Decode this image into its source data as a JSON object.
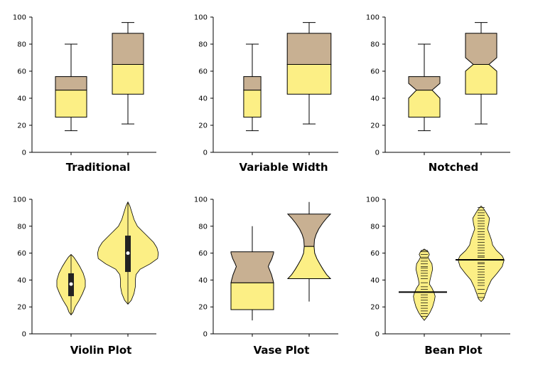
{
  "colors": {
    "lower": "#fcef85",
    "upper": "#c8b092",
    "stroke": "#000000",
    "dark": "#222222"
  },
  "chart_data": [
    {
      "id": "traditional",
      "type": "box",
      "title": "Traditional",
      "ylim": [
        0,
        100
      ],
      "yticks": [
        0,
        20,
        40,
        60,
        80,
        100
      ],
      "groups": [
        {
          "min": 16,
          "q1": 26,
          "median": 46,
          "q3": 56,
          "max": 80,
          "width": 1.0
        },
        {
          "min": 21,
          "q1": 43,
          "median": 65,
          "q3": 88,
          "max": 96,
          "width": 1.0
        }
      ]
    },
    {
      "id": "variable",
      "type": "box",
      "title": "Variable Width",
      "ylim": [
        0,
        100
      ],
      "yticks": [
        0,
        20,
        40,
        60,
        80,
        100
      ],
      "groups": [
        {
          "min": 16,
          "q1": 26,
          "median": 46,
          "q3": 56,
          "max": 80,
          "width": 0.55
        },
        {
          "min": 21,
          "q1": 43,
          "median": 65,
          "q3": 88,
          "max": 96,
          "width": 1.4
        }
      ]
    },
    {
      "id": "notched",
      "type": "notched-box",
      "title": "Notched",
      "ylim": [
        0,
        100
      ],
      "yticks": [
        0,
        20,
        40,
        60,
        80,
        100
      ],
      "groups": [
        {
          "min": 16,
          "q1": 26,
          "median": 46,
          "q3": 56,
          "max": 80,
          "notch_low": 40,
          "notch_high": 51
        },
        {
          "min": 21,
          "q1": 43,
          "median": 65,
          "q3": 88,
          "max": 96,
          "notch_low": 60,
          "notch_high": 70
        }
      ]
    },
    {
      "id": "violin",
      "type": "violin",
      "title": "Violin Plot",
      "ylim": [
        0,
        100
      ],
      "yticks": [
        0,
        20,
        40,
        60,
        80,
        100
      ],
      "groups": [
        {
          "min": 14,
          "max": 59,
          "q1": 28,
          "median": 37,
          "q3": 45,
          "profile": [
            [
              14,
              0
            ],
            [
              16,
              3
            ],
            [
              20,
              6
            ],
            [
              25,
              12
            ],
            [
              30,
              17
            ],
            [
              35,
              21
            ],
            [
              40,
              21
            ],
            [
              45,
              18
            ],
            [
              50,
              13
            ],
            [
              54,
              8
            ],
            [
              57,
              4
            ],
            [
              59,
              0
            ]
          ]
        },
        {
          "min": 22,
          "max": 98,
          "q1": 46,
          "median": 60,
          "q3": 73,
          "profile": [
            [
              22,
              0
            ],
            [
              25,
              5
            ],
            [
              30,
              9
            ],
            [
              35,
              11
            ],
            [
              40,
              11
            ],
            [
              44,
              12
            ],
            [
              48,
              18
            ],
            [
              52,
              33
            ],
            [
              56,
              44
            ],
            [
              60,
              45
            ],
            [
              64,
              43
            ],
            [
              68,
              38
            ],
            [
              72,
              30
            ],
            [
              76,
              22
            ],
            [
              80,
              14
            ],
            [
              85,
              9
            ],
            [
              90,
              6
            ],
            [
              95,
              3
            ],
            [
              98,
              0
            ]
          ]
        }
      ]
    },
    {
      "id": "vase",
      "type": "vase",
      "title": "Vase Plot",
      "ylim": [
        0,
        100
      ],
      "yticks": [
        0,
        20,
        40,
        60,
        80,
        100
      ],
      "groups": [
        {
          "min": 10,
          "q1": 18,
          "median": 38,
          "q3": 61,
          "max": 80,
          "profile": [
            [
              18,
              1.0
            ],
            [
              22,
              1.0
            ],
            [
              26,
              1.0
            ],
            [
              30,
              1.0
            ],
            [
              34,
              1.0
            ],
            [
              38,
              1.0
            ],
            [
              40,
              0.97
            ],
            [
              44,
              0.9
            ],
            [
              48,
              0.8
            ],
            [
              50,
              0.75
            ],
            [
              52,
              0.8
            ],
            [
              56,
              0.92
            ],
            [
              60,
              1.0
            ],
            [
              61,
              1.0
            ]
          ]
        },
        {
          "min": 24,
          "q1": 41,
          "median": 65,
          "q3": 89,
          "max": 98,
          "profile": [
            [
              41,
              1.0
            ],
            [
              44,
              0.82
            ],
            [
              48,
              0.65
            ],
            [
              52,
              0.5
            ],
            [
              56,
              0.36
            ],
            [
              60,
              0.26
            ],
            [
              65,
              0.23
            ],
            [
              70,
              0.25
            ],
            [
              74,
              0.33
            ],
            [
              78,
              0.45
            ],
            [
              82,
              0.62
            ],
            [
              86,
              0.82
            ],
            [
              89,
              1.0
            ]
          ]
        }
      ]
    },
    {
      "id": "bean",
      "type": "bean",
      "title": "Bean Plot",
      "ylim": [
        0,
        100
      ],
      "yticks": [
        0,
        20,
        40,
        60,
        80,
        100
      ],
      "groups": [
        {
          "min": 10,
          "max": 63,
          "mean": 31,
          "profile": [
            [
              10,
              0
            ],
            [
              13,
              5
            ],
            [
              16,
              9
            ],
            [
              20,
              13
            ],
            [
              25,
              16
            ],
            [
              28,
              17
            ],
            [
              31,
              15
            ],
            [
              34,
              12
            ],
            [
              37,
              8
            ],
            [
              40,
              9
            ],
            [
              44,
              11
            ],
            [
              48,
              13
            ],
            [
              52,
              12
            ],
            [
              55,
              8
            ],
            [
              57,
              6
            ],
            [
              59,
              8
            ],
            [
              61,
              6
            ],
            [
              63,
              0
            ]
          ],
          "points": [
            13,
            15,
            17,
            19,
            21,
            23,
            25,
            27,
            29,
            31,
            33,
            35,
            38,
            41,
            43,
            45,
            47,
            49,
            50,
            52,
            54,
            56,
            57,
            59,
            61,
            62
          ]
        },
        {
          "min": 24,
          "max": 95,
          "mean": 55,
          "profile": [
            [
              24,
              0
            ],
            [
              26,
              4
            ],
            [
              30,
              7
            ],
            [
              35,
              11
            ],
            [
              40,
              16
            ],
            [
              45,
              25
            ],
            [
              50,
              33
            ],
            [
              55,
              36
            ],
            [
              58,
              33
            ],
            [
              62,
              24
            ],
            [
              66,
              18
            ],
            [
              70,
              16
            ],
            [
              74,
              13
            ],
            [
              78,
              10
            ],
            [
              82,
              12
            ],
            [
              86,
              13
            ],
            [
              90,
              8
            ],
            [
              93,
              4
            ],
            [
              95,
              0
            ]
          ],
          "points": [
            27,
            30,
            33,
            36,
            38,
            40,
            42,
            44,
            46,
            48,
            50,
            52,
            53,
            55,
            57,
            58,
            60,
            62,
            64,
            66,
            68,
            70,
            72,
            74,
            76,
            78,
            80,
            82,
            84,
            86,
            88,
            90,
            92,
            94
          ]
        }
      ]
    }
  ]
}
